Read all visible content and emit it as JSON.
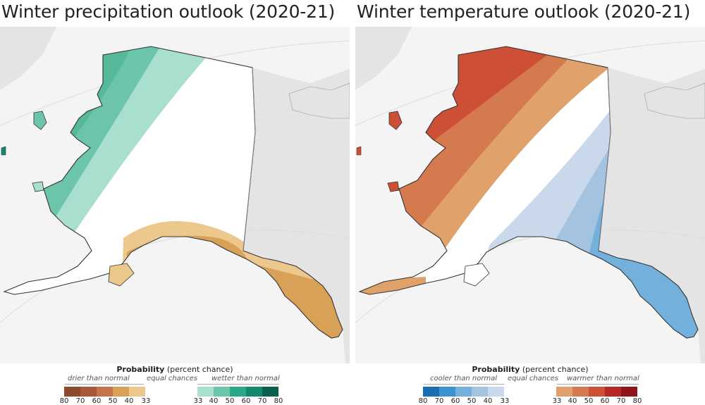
{
  "left_panel": {
    "title": "Winter precipitation outlook (2020-21)",
    "legend": {
      "title_bold": "Probability",
      "title_rest": " (percent chance)",
      "label_low": "drier than normal",
      "label_mid": "equal chances",
      "label_high": "wetter than normal",
      "ticks_low": [
        "80",
        "70",
        "60",
        "50",
        "40",
        "33"
      ],
      "ticks_high": [
        "33",
        "40",
        "50",
        "60",
        "70",
        "80"
      ],
      "colors_low": [
        "#8c4a2f",
        "#a8593a",
        "#c4764a",
        "#d9a158",
        "#ecc88c"
      ],
      "colors_high": [
        "#a8dfce",
        "#6cc4aa",
        "#2aa88a",
        "#138a70",
        "#0a5f4f"
      ]
    }
  },
  "right_panel": {
    "title": "Winter temperature outlook (2020-21)",
    "legend": {
      "title_bold": "Probability",
      "title_rest": " (percent chance)",
      "label_low": "cooler than normal",
      "label_mid": "equal chances",
      "label_high": "warmer than normal",
      "ticks_low": [
        "80",
        "70",
        "60",
        "50",
        "40",
        "33"
      ],
      "ticks_high": [
        "33",
        "40",
        "50",
        "60",
        "70",
        "80"
      ],
      "colors_low": [
        "#1b6fb0",
        "#3d93cf",
        "#73b0dc",
        "#a3c3e0",
        "#c9d8ea"
      ],
      "colors_high": [
        "#e0a26a",
        "#d57a4f",
        "#cc4f36",
        "#b52a26",
        "#8f161b"
      ]
    }
  },
  "colors": {
    "background_land": "#e7e7e7",
    "ocean": "#f4f4f4",
    "equal_chances": "#ffffff",
    "border": "#333333"
  }
}
